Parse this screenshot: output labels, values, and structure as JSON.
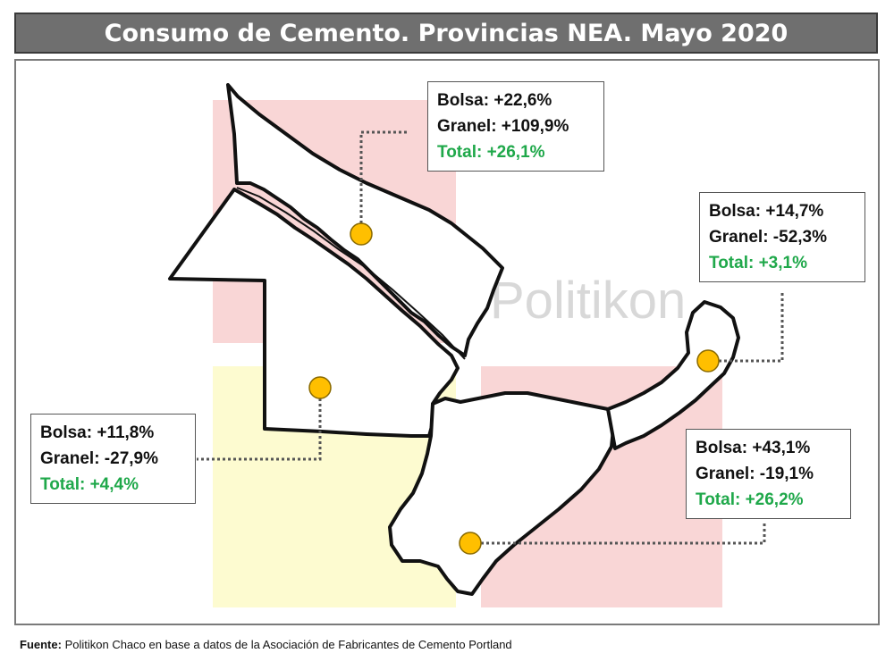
{
  "title": "Consumo de Cemento. Provincias NEA. Mayo 2020",
  "watermark": "Politikon",
  "colors": {
    "title_bg": "#6f6f6f",
    "total_text": "#1fa84a",
    "marker": "#ffbf00",
    "pink_block": "#f9d6d6",
    "yellow_block": "#fdfbd0"
  },
  "regions": [
    {
      "id": "formosa",
      "bolsa": "Bolsa: +22,6%",
      "granel": "Granel: +109,9%",
      "total": "Total: +26,1%"
    },
    {
      "id": "misiones",
      "bolsa": "Bolsa: +14,7%",
      "granel": "Granel: -52,3%",
      "total": "Total: +3,1%"
    },
    {
      "id": "chaco",
      "bolsa": "Bolsa: +11,8%",
      "granel": "Granel: -27,9%",
      "total": "Total: +4,4%"
    },
    {
      "id": "corrientes",
      "bolsa": "Bolsa: +43,1%",
      "granel": "Granel: -19,1%",
      "total": "Total: +26,2%"
    }
  ],
  "source": {
    "label": "Fuente:",
    "text": " Politikon Chaco en base a datos de la Asociación de Fabricantes de Cemento Portland"
  }
}
